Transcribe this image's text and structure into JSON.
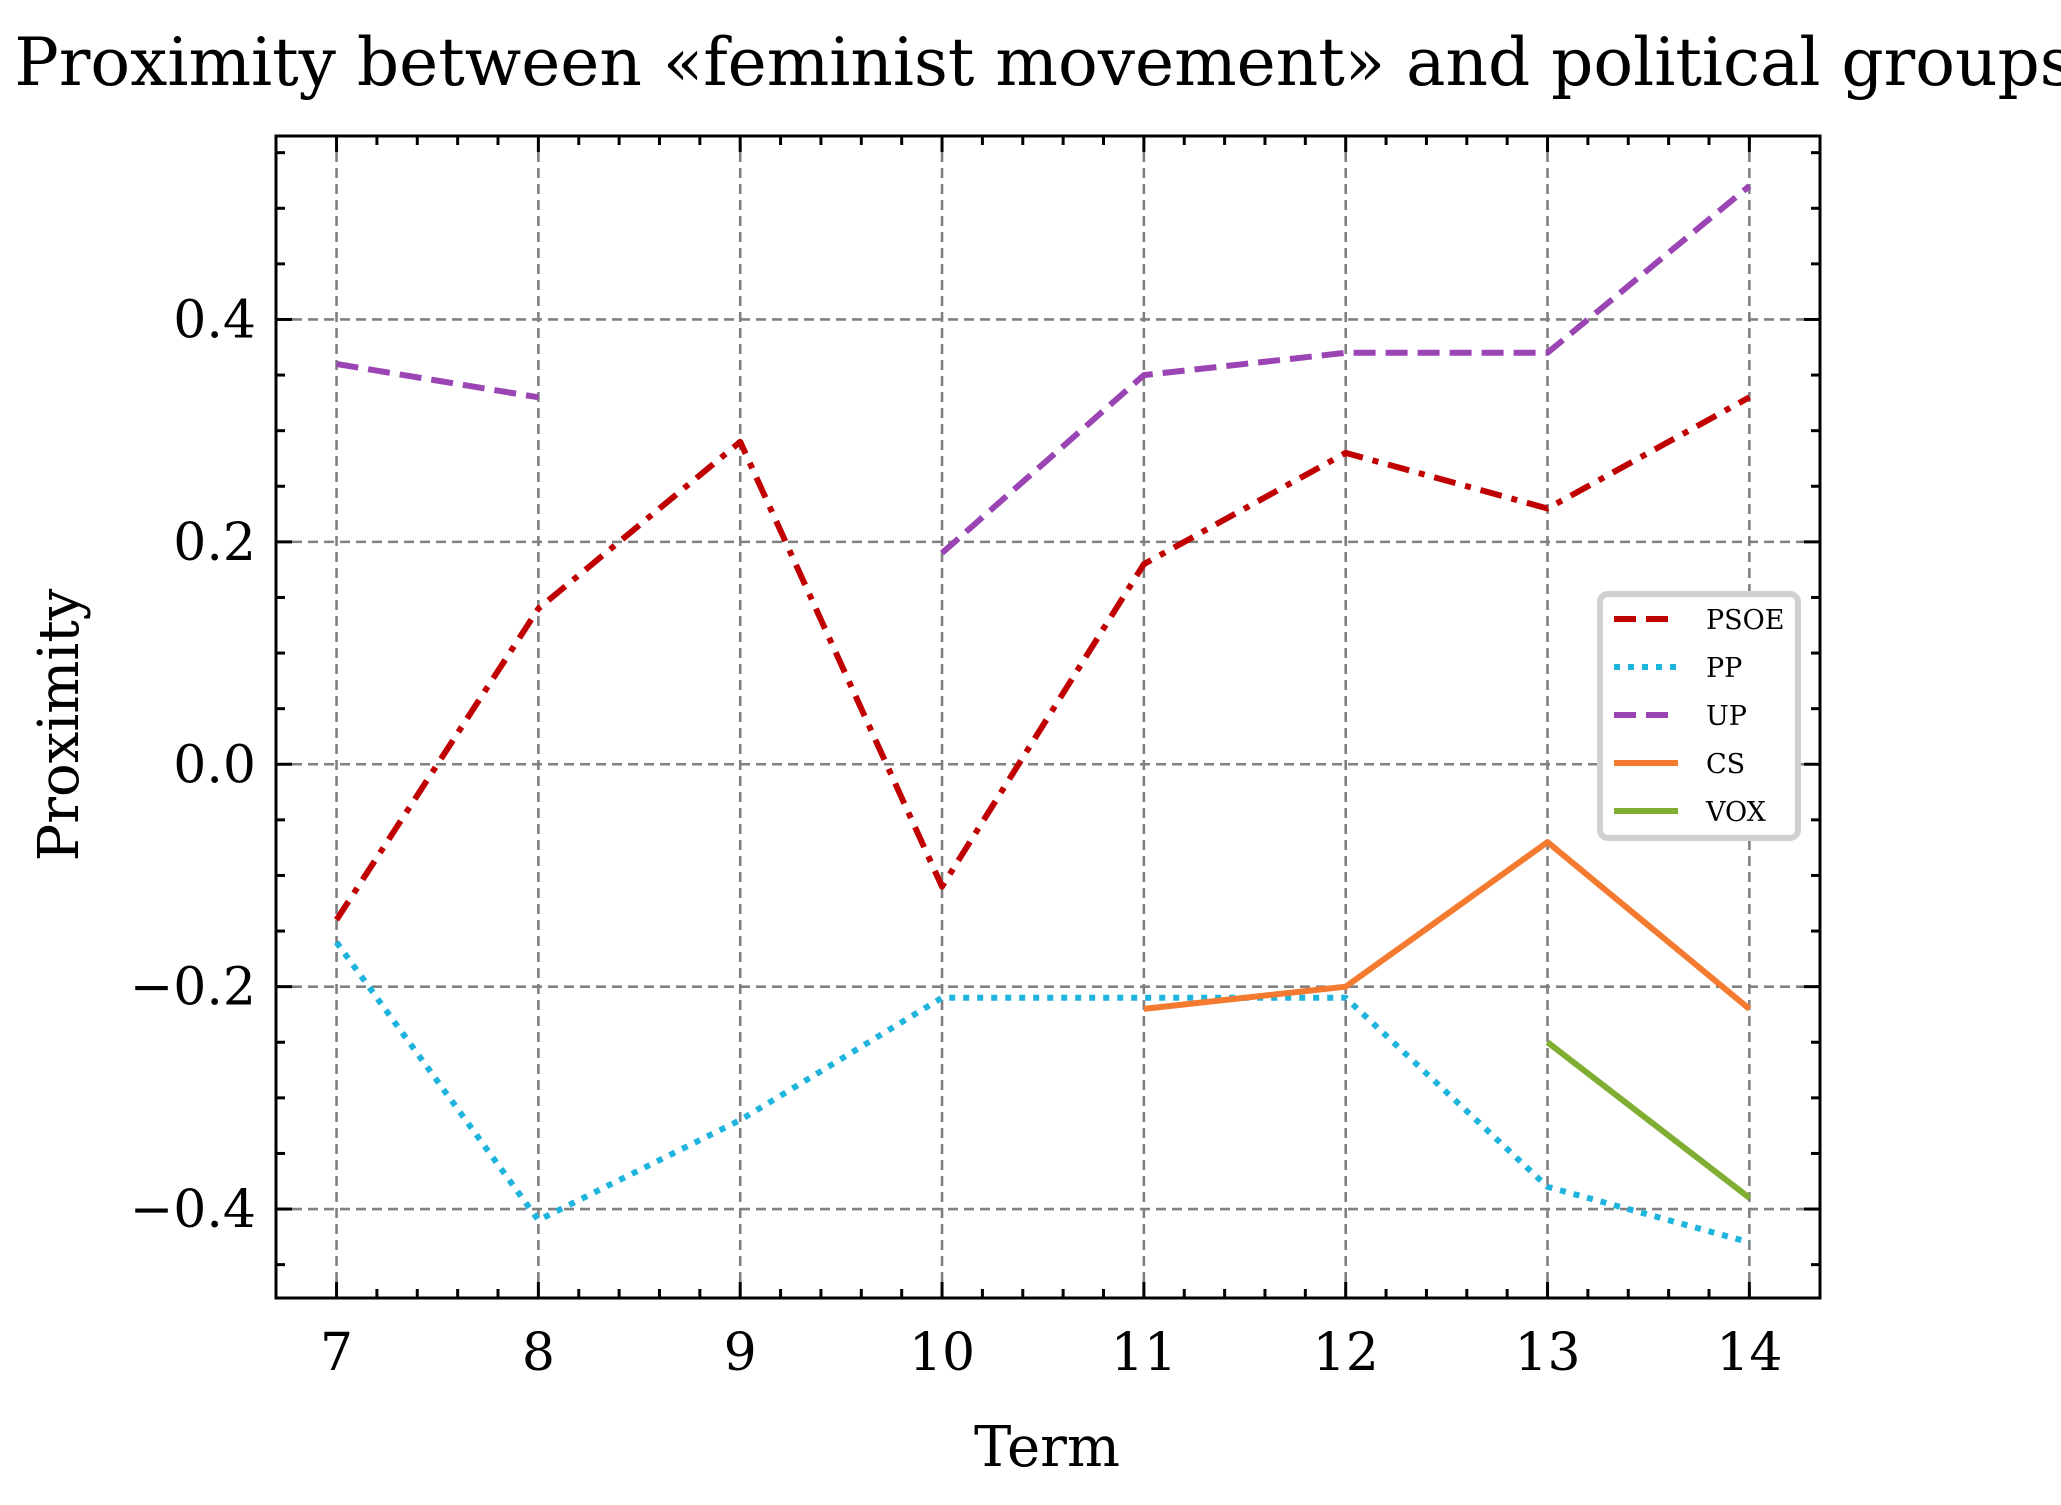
{
  "chart_data": {
    "type": "line",
    "title": "Proximity between «feminist movement» and political groups",
    "xlabel": "Term",
    "ylabel": "Proximity",
    "x": [
      7,
      8,
      9,
      10,
      11,
      12,
      13,
      14
    ],
    "xlim": [
      6.7,
      14.35
    ],
    "ylim": [
      -0.48,
      0.565
    ],
    "xticks": [
      "7",
      "8",
      "9",
      "10",
      "11",
      "12",
      "13",
      "14"
    ],
    "yticks": [
      {
        "value": 0.4,
        "label": "0.4"
      },
      {
        "value": 0.2,
        "label": "0.2"
      },
      {
        "value": 0.0,
        "label": "0.0"
      },
      {
        "value": -0.2,
        "label": "−0.2"
      },
      {
        "value": -0.4,
        "label": "−0.4"
      }
    ],
    "grid": true,
    "legend_position": "center-right",
    "series": [
      {
        "name": "PSOE",
        "color": "#c00000",
        "style": "dashdot",
        "values": [
          -0.14,
          0.14,
          0.29,
          -0.11,
          0.18,
          0.28,
          0.23,
          0.33
        ]
      },
      {
        "name": "PP",
        "color": "#1fb4dd",
        "style": "dotted",
        "values": [
          -0.16,
          -0.41,
          -0.32,
          -0.21,
          -0.21,
          -0.21,
          -0.38,
          -0.43
        ]
      },
      {
        "name": "UP",
        "color": "#9b45b5",
        "style": "dashed",
        "values": [
          0.36,
          0.33,
          null,
          0.19,
          0.35,
          0.37,
          0.37,
          0.52
        ]
      },
      {
        "name": "CS",
        "color": "#f47a2f",
        "style": "solid",
        "values": [
          null,
          null,
          null,
          null,
          -0.22,
          -0.2,
          -0.07,
          -0.22
        ]
      },
      {
        "name": "VOX",
        "color": "#7fae32",
        "style": "solid",
        "values": [
          null,
          null,
          null,
          null,
          null,
          null,
          -0.25,
          -0.39
        ]
      }
    ]
  }
}
